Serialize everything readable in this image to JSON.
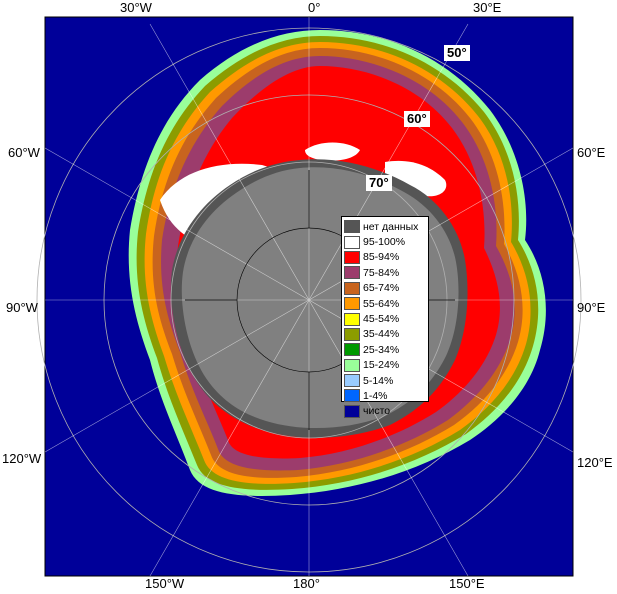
{
  "longitude_labels": {
    "top": [
      "30°W",
      "0°",
      "30°E"
    ],
    "left": [
      "60°W",
      "90°W",
      "120°W"
    ],
    "right": [
      "60°E",
      "90°E",
      "120°E"
    ],
    "bottom": [
      "150°W",
      "180°",
      "150°E"
    ]
  },
  "latitude_labels": [
    "50°",
    "60°",
    "70°"
  ],
  "legend": {
    "items": [
      {
        "label": "нет данных",
        "color": "#555555"
      },
      {
        "label": "95-100%",
        "color": "#ffffff"
      },
      {
        "label": "85-94%",
        "color": "#ff0000"
      },
      {
        "label": "75-84%",
        "color": "#9c3c6c"
      },
      {
        "label": "65-74%",
        "color": "#c8641e"
      },
      {
        "label": "55-64%",
        "color": "#ff9900"
      },
      {
        "label": "45-54%",
        "color": "#ffff00"
      },
      {
        "label": "35-44%",
        "color": "#8c9c00"
      },
      {
        "label": "25-34%",
        "color": "#009900"
      },
      {
        "label": "15-24%",
        "color": "#99ff99"
      },
      {
        "label": "5-14%",
        "color": "#99ccff"
      },
      {
        "label": "1-4%",
        "color": "#0066ff"
      },
      {
        "label": "чисто",
        "color": "#000099"
      }
    ]
  },
  "colors": {
    "ocean": "#000099",
    "land": "#808080",
    "no_data": "#555555",
    "grid": "#b0b0b0"
  }
}
